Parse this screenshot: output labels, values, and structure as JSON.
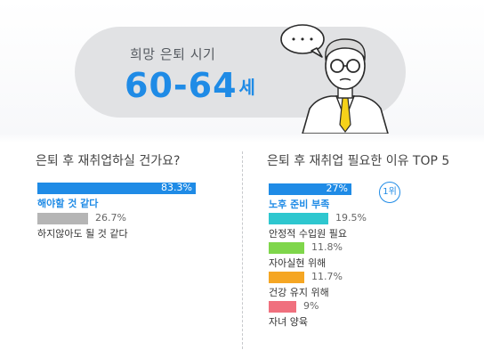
{
  "header": {
    "title": "희망 은퇴 시기",
    "age_value": "60-64",
    "age_unit": "세",
    "speech_dots": "• • •"
  },
  "chart_data": [
    {
      "type": "bar",
      "title": "은퇴 후 재취업하실 건가요?",
      "categories": [
        "해야할 것 같다",
        "하지않아도 될 것 같다"
      ],
      "values": [
        83.3,
        26.7
      ],
      "value_labels": [
        "83.3%",
        "26.7%"
      ],
      "colors": [
        "#1f8be6",
        "#b5b5b5"
      ],
      "xlim": [
        0,
        100
      ]
    },
    {
      "type": "bar",
      "title": "은퇴 후 재취업 필요한 이유 TOP 5",
      "categories": [
        "노후 준비 부족",
        "안정적 수입원 필요",
        "자아실현 위해",
        "건강 유지 위해",
        "자녀 양육"
      ],
      "values": [
        27,
        19.5,
        11.8,
        11.7,
        9
      ],
      "value_labels": [
        "27%",
        "19.5%",
        "11.8%",
        "11.7%",
        "9%"
      ],
      "colors": [
        "#1f8be6",
        "#2ec7cf",
        "#7fd64b",
        "#f5a623",
        "#f0707e"
      ],
      "rank_badge": "1위",
      "xlim": [
        0,
        35
      ]
    }
  ]
}
